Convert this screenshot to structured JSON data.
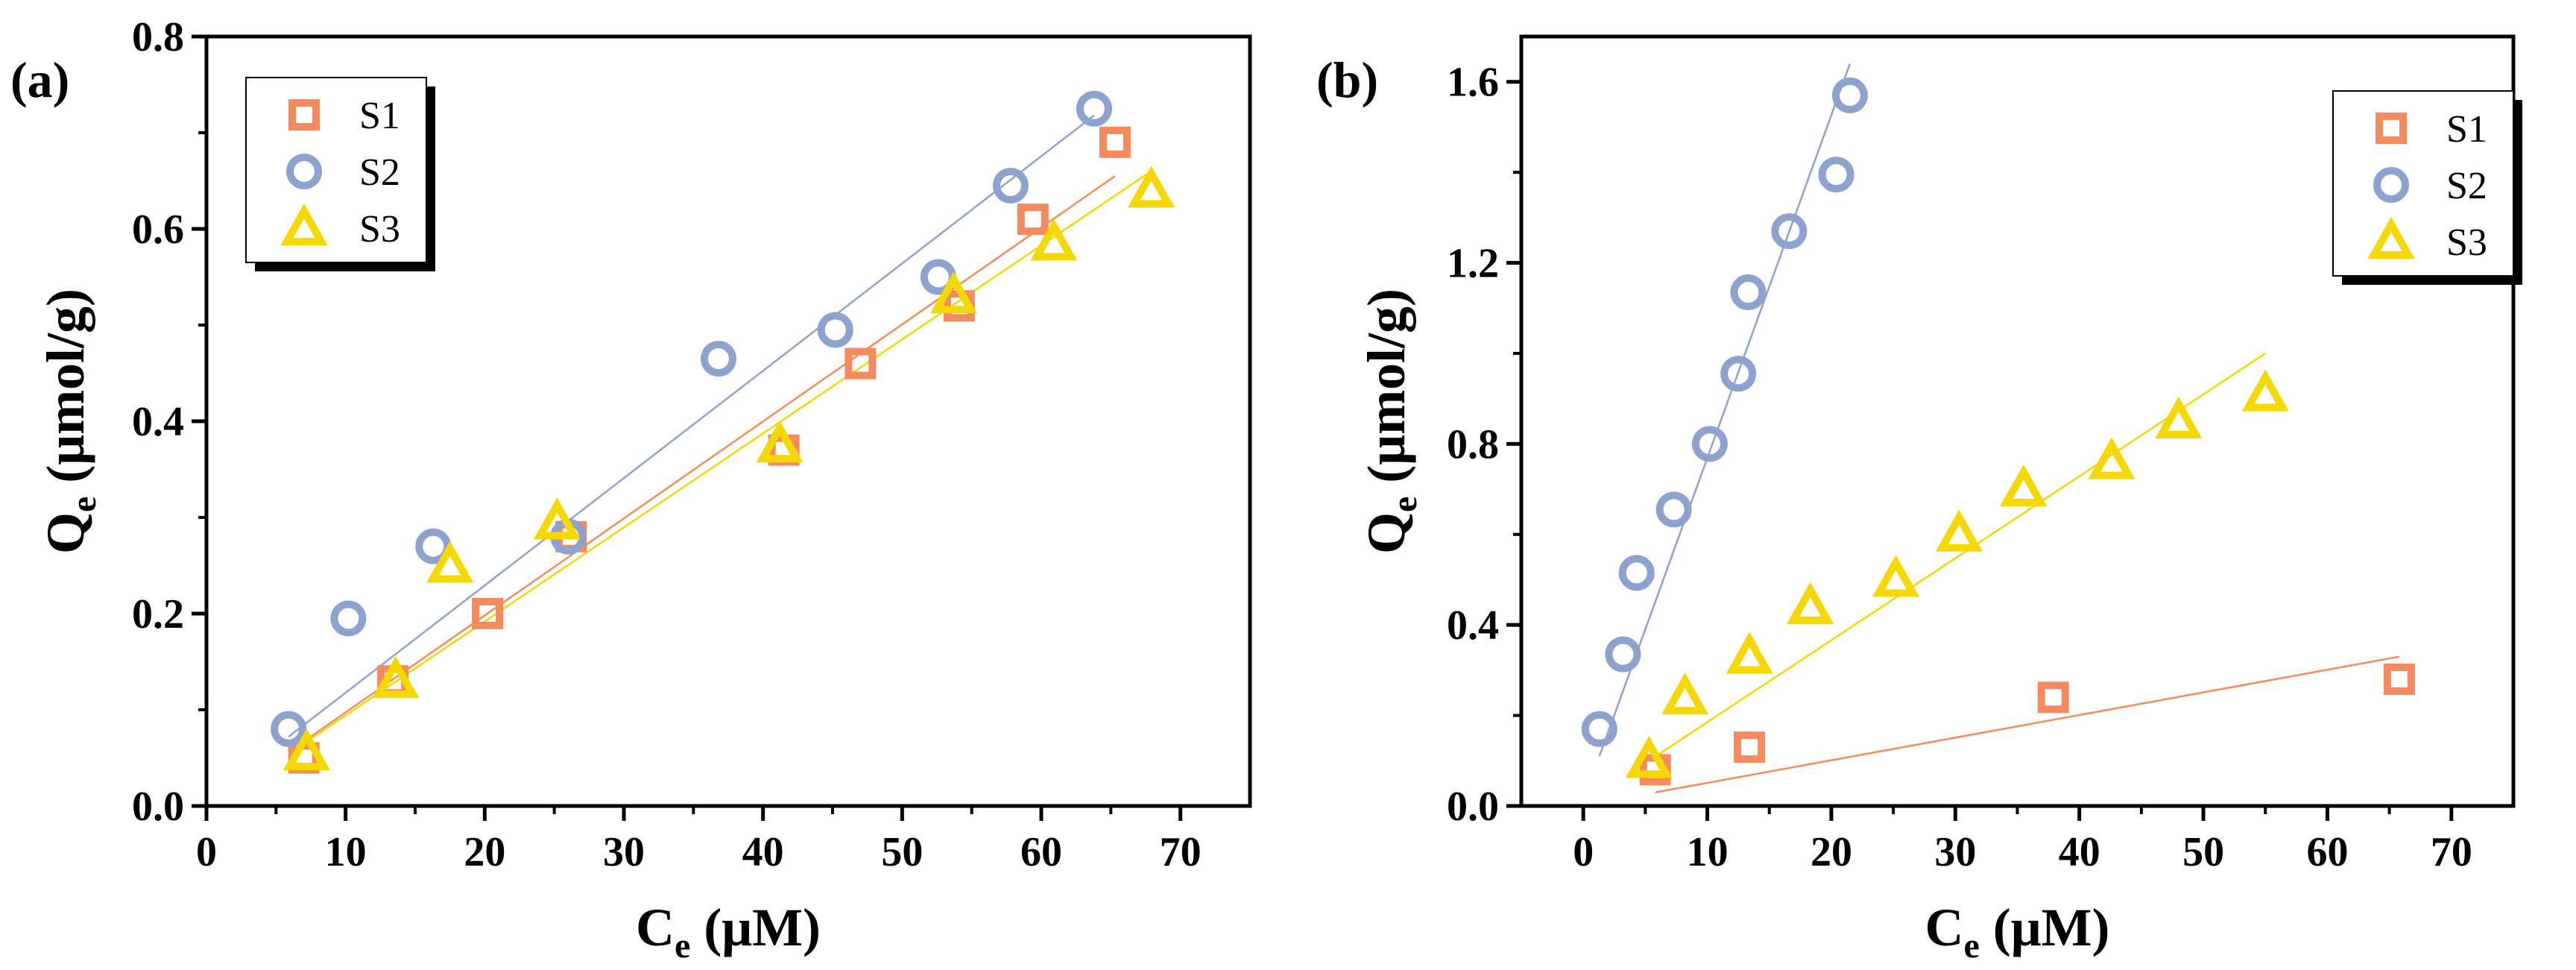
{
  "chart_data": [
    {
      "panel_label": "(a)",
      "type": "scatter",
      "xlabel": {
        "base": "C",
        "sub": "e",
        "rest": " (μM)"
      },
      "ylabel": {
        "base": "Q",
        "sub": "e",
        "rest": " (μmol/g)"
      },
      "xlim": [
        0,
        75
      ],
      "ylim": [
        0,
        0.8
      ],
      "xticks": [
        0,
        10,
        20,
        30,
        40,
        50,
        60,
        70
      ],
      "yticks": [
        0.0,
        0.2,
        0.4,
        0.6,
        0.8
      ],
      "ytick_labels": [
        "0.0",
        "0.2",
        "0.4",
        "0.6",
        "0.8"
      ],
      "legend_position": "top-left",
      "series": [
        {
          "name": "S1",
          "marker": "square",
          "color": "#F58A5E",
          "x": [
            7.0,
            13.4,
            20.2,
            26.2,
            41.5,
            47.0,
            54.1,
            59.4,
            65.3
          ],
          "y": [
            0.05,
            0.13,
            0.2,
            0.28,
            0.37,
            0.46,
            0.52,
            0.61,
            0.69
          ],
          "fit": {
            "x": [
              6.5,
              65.3
            ],
            "y": [
              0.062,
              0.655
            ]
          }
        },
        {
          "name": "S2",
          "marker": "circle",
          "color": "#8DA2CE",
          "x": [
            5.9,
            10.2,
            16.3,
            26.0,
            36.8,
            45.2,
            52.6,
            57.8,
            63.8
          ],
          "y": [
            0.08,
            0.195,
            0.27,
            0.28,
            0.465,
            0.495,
            0.55,
            0.645,
            0.725
          ],
          "fit": {
            "x": [
              5.9,
              63.8
            ],
            "y": [
              0.072,
              0.718
            ]
          }
        },
        {
          "name": "S3",
          "marker": "triangle",
          "color": "#F5D800",
          "x": [
            7.2,
            13.6,
            17.5,
            25.2,
            41.2,
            53.7,
            60.9,
            67.9
          ],
          "y": [
            0.055,
            0.13,
            0.25,
            0.295,
            0.375,
            0.53,
            0.585,
            0.64
          ],
          "fit": {
            "x": [
              6.5,
              67.9
            ],
            "y": [
              0.06,
              0.66
            ]
          }
        }
      ]
    },
    {
      "panel_label": "(b)",
      "type": "scatter",
      "xlabel": {
        "base": "C",
        "sub": "e",
        "rest": " (μM)"
      },
      "ylabel": {
        "base": "Q",
        "sub": "e",
        "rest": " (μmol/g)"
      },
      "xlim": [
        -5,
        75
      ],
      "ylim": [
        0,
        1.7
      ],
      "xticks": [
        0,
        10,
        20,
        30,
        40,
        50,
        60,
        70
      ],
      "yticks": [
        0.0,
        0.4,
        0.8,
        1.2,
        1.6
      ],
      "ytick_labels": [
        "0.0",
        "0.4",
        "0.8",
        "1.2",
        "1.6"
      ],
      "legend_position": "top-right",
      "series": [
        {
          "name": "S1",
          "marker": "square",
          "color": "#F58A5E",
          "x": [
            5.8,
            13.4,
            37.9,
            65.8
          ],
          "y": [
            0.08,
            0.13,
            0.24,
            0.28
          ],
          "fit": {
            "x": [
              5.8,
              65.8
            ],
            "y": [
              0.03,
              0.33
            ]
          }
        },
        {
          "name": "S2",
          "marker": "circle",
          "color": "#8DA2CE",
          "x": [
            1.3,
            3.2,
            4.3,
            7.3,
            10.2,
            12.5,
            13.3,
            16.6,
            20.4,
            21.5
          ],
          "y": [
            0.17,
            0.335,
            0.515,
            0.655,
            0.8,
            0.955,
            1.135,
            1.27,
            1.395,
            1.57
          ],
          "fit": {
            "x": [
              1.3,
              21.5
            ],
            "y": [
              0.11,
              1.64
            ]
          }
        },
        {
          "name": "S3",
          "marker": "triangle",
          "color": "#F5D800",
          "x": [
            5.3,
            8.2,
            13.4,
            18.3,
            25.2,
            30.3,
            35.5,
            42.6,
            48.0,
            55.0
          ],
          "y": [
            0.1,
            0.24,
            0.33,
            0.44,
            0.5,
            0.6,
            0.7,
            0.76,
            0.85,
            0.91
          ],
          "fit": {
            "x": [
              5.3,
              55.0
            ],
            "y": [
              0.1,
              1.0
            ]
          }
        }
      ]
    }
  ]
}
